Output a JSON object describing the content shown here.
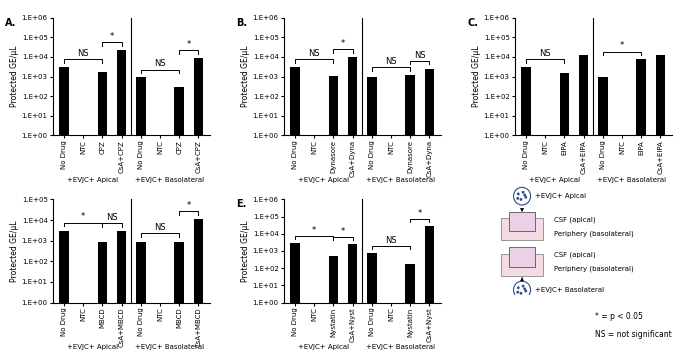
{
  "chart_data": [
    {
      "type": "bar",
      "title": "A.",
      "y_label": "Protected GE/μL",
      "log": "y",
      "color": "#000000",
      "groups": [
        "+EVJC+ Apical",
        "+EVJC+ Basolateral"
      ],
      "categories": [
        "No Drug",
        "NTC",
        "CPZ",
        "CsA+CPZ",
        "No Drug",
        "NTC",
        "CPZ",
        "CsA+CPZ"
      ],
      "values": [
        3000,
        null,
        1700,
        22000,
        900,
        null,
        300,
        9000
      ],
      "ylim": [
        1,
        1000000
      ],
      "yticks": [
        {
          "value": 1,
          "label": "1.E+00"
        },
        {
          "value": 10,
          "label": "1.E+01"
        },
        {
          "value": 100,
          "label": "1.E+02"
        },
        {
          "value": 1000,
          "label": "1.E+03"
        },
        {
          "value": 10000,
          "label": "1.E+04"
        },
        {
          "value": 100000,
          "label": "1.E+05"
        },
        {
          "value": 1000000,
          "label": "1.E+06"
        }
      ],
      "significance": [
        {
          "group": "+EVJC+ Apical",
          "pair": [
            "No Drug",
            "CPZ"
          ],
          "label": "NS"
        },
        {
          "group": "+EVJC+ Apical",
          "pair": [
            "CPZ",
            "CsA+CPZ"
          ],
          "label": "*"
        },
        {
          "group": "+EVJC+ Basolateral",
          "pair": [
            "No Drug",
            "CPZ"
          ],
          "label": "NS"
        },
        {
          "group": "+EVJC+ Basolateral",
          "pair": [
            "CPZ",
            "CsA+CPZ"
          ],
          "label": "*"
        }
      ]
    },
    {
      "type": "bar",
      "title": "B.",
      "y_label": "Protected GE/μL",
      "log": "y",
      "color": "#000000",
      "groups": [
        "+EVJC+ Apical",
        "+EVJC+ Basolateral"
      ],
      "categories": [
        "No Drug",
        "NTC",
        "Dynasore",
        "CsA+Dyna",
        "No Drug",
        "NTC",
        "Dynasore",
        "CsA+Dyna"
      ],
      "values": [
        3000,
        null,
        1100,
        10000,
        900,
        null,
        1200,
        2500
      ],
      "ylim": [
        1,
        1000000
      ],
      "yticks": [
        {
          "value": 1,
          "label": "1.E+00"
        },
        {
          "value": 10,
          "label": "1.E+01"
        },
        {
          "value": 100,
          "label": "1.E+02"
        },
        {
          "value": 1000,
          "label": "1.E+03"
        },
        {
          "value": 10000,
          "label": "1.E+04"
        },
        {
          "value": 100000,
          "label": "1.E+05"
        },
        {
          "value": 1000000,
          "label": "1.E+06"
        }
      ],
      "significance": [
        {
          "group": "+EVJC+ Apical",
          "pair": [
            "No Drug",
            "Dynasore"
          ],
          "label": "NS"
        },
        {
          "group": "+EVJC+ Apical",
          "pair": [
            "Dynasore",
            "CsA+Dyna"
          ],
          "label": "*"
        },
        {
          "group": "+EVJC+ Basolateral",
          "pair": [
            "No Drug",
            "Dynasore"
          ],
          "label": "NS"
        },
        {
          "group": "+EVJC+ Basolateral",
          "pair": [
            "Dynasore",
            "CsA+Dyna"
          ],
          "label": "NS"
        }
      ]
    },
    {
      "type": "bar",
      "title": "C.",
      "y_label": "Protected GE/μL",
      "log": "y",
      "color": "#000000",
      "groups": [
        "+EVJC+ Apical",
        "+EVJC+ Basolateral"
      ],
      "categories": [
        "No Drug",
        "NTC",
        "EIPA",
        "CsA+EIPA",
        "No Drug",
        "NTC",
        "EIPA",
        "CsA+EIPA"
      ],
      "values": [
        3000,
        null,
        1500,
        12000,
        900,
        null,
        7500,
        12000
      ],
      "ylim": [
        1,
        1000000
      ],
      "yticks": [
        {
          "value": 1,
          "label": "1.E+00"
        },
        {
          "value": 10,
          "label": "1.E+01"
        },
        {
          "value": 100,
          "label": "1.E+02"
        },
        {
          "value": 1000,
          "label": "1.E+03"
        },
        {
          "value": 10000,
          "label": "1.E+04"
        },
        {
          "value": 100000,
          "label": "1.E+05"
        },
        {
          "value": 1000000,
          "label": "1.E+06"
        }
      ],
      "significance": [
        {
          "group": "+EVJC+ Apical",
          "pair": [
            "No Drug",
            "EIPA"
          ],
          "label": "NS"
        },
        {
          "group": "+EVJC+ Basolateral",
          "pair": [
            "No Drug",
            "EIPA"
          ],
          "label": "*"
        }
      ]
    },
    {
      "type": "bar",
      "y_label": "Protected GE/μL",
      "log": "y",
      "color": "#000000",
      "groups": [
        "+EVJC+ Apical",
        "+EVJC+ Basolateral"
      ],
      "categories": [
        "No Drug",
        "NTC",
        "MBCD",
        "CsA+MBCD",
        "No Drug",
        "NTC",
        "MBCD",
        "CsA+MBCD"
      ],
      "values": [
        3000,
        null,
        900,
        2800,
        900,
        null,
        900,
        11000
      ],
      "ylim": [
        1,
        100000
      ],
      "yticks": [
        {
          "value": 1,
          "label": "1.E+00"
        },
        {
          "value": 10,
          "label": "1.E+01"
        },
        {
          "value": 100,
          "label": "1.E+02"
        },
        {
          "value": 1000,
          "label": "1.E+03"
        },
        {
          "value": 10000,
          "label": "1.E+04"
        },
        {
          "value": 100000,
          "label": "1.E+05"
        }
      ],
      "significance": [
        {
          "group": "+EVJC+ Apical",
          "pair": [
            "No Drug",
            "MBCD"
          ],
          "label": "*"
        },
        {
          "group": "+EVJC+ Apical",
          "pair": [
            "MBCD",
            "CsA+MBCD"
          ],
          "label": "NS"
        },
        {
          "group": "+EVJC+ Basolateral",
          "pair": [
            "No Drug",
            "MBCD"
          ],
          "label": "NS"
        },
        {
          "group": "+EVJC+ Basolateral",
          "pair": [
            "MBCD",
            "CsA+MBCD"
          ],
          "label": "*"
        }
      ]
    },
    {
      "type": "bar",
      "title": "E.",
      "y_label": "Protected GE/μL",
      "log": "y",
      "color": "#000000",
      "groups": [
        "+EVJC+ Apical",
        "+EVJC+ Basolateral"
      ],
      "categories": [
        "No Drug",
        "NTC",
        "Nystatin",
        "CsA+Nyst",
        "No Drug",
        "NTC",
        "Nystatin",
        "CsA+Nyst"
      ],
      "values": [
        3000,
        null,
        500,
        2500,
        800,
        null,
        180,
        30000
      ],
      "ylim": [
        1,
        1000000
      ],
      "yticks": [
        {
          "value": 1,
          "label": "1.E+00"
        },
        {
          "value": 10,
          "label": "1.E+01"
        },
        {
          "value": 100,
          "label": "1.E+02"
        },
        {
          "value": 1000,
          "label": "1.E+03"
        },
        {
          "value": 10000,
          "label": "1.E+04"
        },
        {
          "value": 100000,
          "label": "1.E+05"
        },
        {
          "value": 1000000,
          "label": "1.E+06"
        }
      ],
      "significance": [
        {
          "group": "+EVJC+ Apical",
          "pair": [
            "No Drug",
            "Nystatin"
          ],
          "label": "*"
        },
        {
          "group": "+EVJC+ Apical",
          "pair": [
            "Nystatin",
            "CsA+Nyst"
          ],
          "label": "*"
        },
        {
          "group": "+EVJC+ Basolateral",
          "pair": [
            "No Drug",
            "Nystatin"
          ],
          "label": "NS"
        },
        {
          "group": "+EVJC+ Basolateral",
          "pair": [
            "Nystatin",
            "CsA+Nyst"
          ],
          "label": "*"
        }
      ]
    }
  ],
  "diagram": {
    "apical": {
      "label": "+EVJC+ Apical",
      "upper": "CSF (apical)",
      "lower": "Periphery (basolateral)"
    },
    "basolateral": {
      "label": "+EVJC+ Basolateral",
      "upper": "CSF (apical)",
      "lower": "Periphery (basolateral)"
    }
  },
  "notes": [
    "* = p < 0.05",
    "NS = not significant"
  ]
}
